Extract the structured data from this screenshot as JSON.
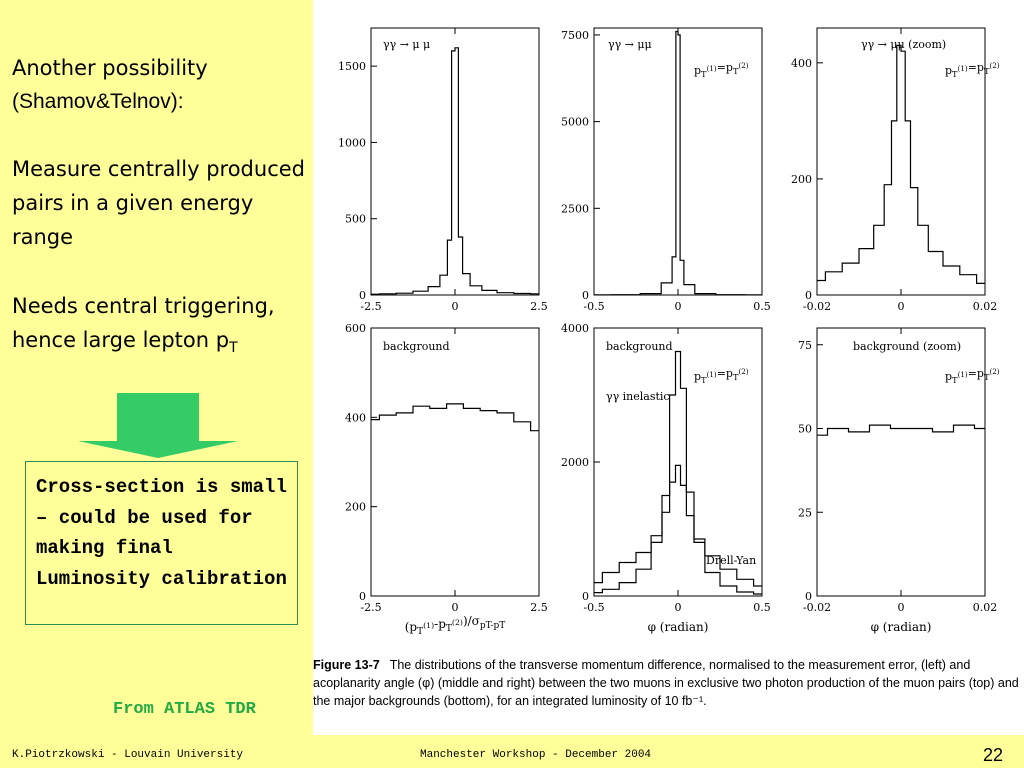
{
  "slide": {
    "heading_line1": "Another possibility",
    "heading_line2": "(Shamov&Telnov):",
    "para1": "Measure  centrally produced pairs in a given energy range",
    "para2_text": "Needs central triggering, hence large lepton p",
    "para2_sub": "T",
    "box_text": "Cross-section is small – could be used for making final Luminosity calibration",
    "source_note": "From ATLAS TDR",
    "footer_left": "K.Piotrzkowski - Louvain University",
    "footer_mid": "Manchester Workshop - December 2004",
    "page_number": "22",
    "caption_label": "Figure 13-7",
    "caption_text": "The distributions of the transverse momentum difference, normalised to the measurement error, (left) and acoplanarity angle (φ) (middle and right) between the two muons in exclusive two photon production of the muon pairs (top) and the major backgrounds (bottom), for an integrated luminosity of 10 fb⁻¹.",
    "colors": {
      "background": "#ffff99",
      "arrow": "#33cc66",
      "box_border": "#2e8b57",
      "source_note": "#22aa44"
    }
  },
  "chart_data": [
    {
      "type": "line",
      "style": "step-histogram",
      "annotations": [
        "γγ → μ μ"
      ],
      "xlim": [
        -2.5,
        2.5
      ],
      "ylim": [
        0,
        1750
      ],
      "xticks": [
        "-2.5",
        "0",
        "2.5"
      ],
      "yticks": [
        "0",
        "500",
        "1000",
        "1500"
      ],
      "x": [
        -2.5,
        -2.0,
        -1.5,
        -1.0,
        -0.6,
        -0.3,
        -0.15,
        -0.05,
        0.05,
        0.15,
        0.3,
        0.6,
        1.0,
        1.5,
        2.0,
        2.5
      ],
      "series": [
        {
          "values": [
            5,
            8,
            12,
            25,
            55,
            130,
            360,
            1600,
            1620,
            380,
            140,
            60,
            30,
            15,
            10,
            8
          ]
        }
      ]
    },
    {
      "type": "line",
      "style": "step-histogram",
      "annotations": [
        "γγ → μμ",
        "p_T^(1)=p_T^(2)"
      ],
      "xlim": [
        -0.5,
        0.5
      ],
      "ylim": [
        0,
        7700
      ],
      "xticks": [
        "-0.5",
        "0",
        "0.5"
      ],
      "yticks": [
        "0",
        "2500",
        "5000",
        "7500"
      ],
      "x": [
        -0.5,
        -0.3,
        -0.15,
        -0.05,
        -0.02,
        -0.005,
        0.005,
        0.02,
        0.05,
        0.15,
        0.3,
        0.5
      ],
      "series": [
        {
          "values": [
            5,
            10,
            40,
            350,
            1100,
            7600,
            7500,
            1000,
            300,
            40,
            10,
            5
          ]
        }
      ]
    },
    {
      "type": "line",
      "style": "step-histogram",
      "annotations": [
        "γγ → μμ (zoom)",
        "p_T^(1)=p_T^(2)"
      ],
      "xlim": [
        -0.02,
        0.02
      ],
      "ylim": [
        0,
        460
      ],
      "xticks": [
        "-0.02",
        "0",
        "0.02"
      ],
      "yticks": [
        "0",
        "200",
        "400"
      ],
      "x": [
        -0.02,
        -0.016,
        -0.012,
        -0.008,
        -0.005,
        -0.003,
        -0.0015,
        -0.0005,
        0.0005,
        0.0015,
        0.003,
        0.005,
        0.008,
        0.012,
        0.016,
        0.02
      ],
      "series": [
        {
          "values": [
            25,
            40,
            55,
            80,
            120,
            190,
            300,
            430,
            420,
            300,
            185,
            120,
            75,
            50,
            35,
            20
          ]
        }
      ]
    },
    {
      "type": "line",
      "style": "step-histogram",
      "annotations": [
        "background"
      ],
      "xlim": [
        -2.5,
        2.5
      ],
      "ylim": [
        0,
        600
      ],
      "xticks": [
        "-2.5",
        "0",
        "2.5"
      ],
      "yticks": [
        "0",
        "200",
        "400",
        "600"
      ],
      "xlabel": "(p_T^(1)-p_T^(2))/σ_pT-pT",
      "x": [
        -2.5,
        -2.0,
        -1.5,
        -1.0,
        -0.5,
        0,
        0.5,
        1.0,
        1.5,
        2.0,
        2.5
      ],
      "series": [
        {
          "values": [
            395,
            405,
            410,
            425,
            420,
            430,
            420,
            415,
            410,
            390,
            370
          ]
        }
      ]
    },
    {
      "type": "line",
      "style": "step-histogram",
      "annotations": [
        "background",
        "p_T^(1)=p_T^(2)",
        "γγ inelastic",
        "Drell-Yan"
      ],
      "xlim": [
        -0.5,
        0.5
      ],
      "ylim": [
        0,
        4000
      ],
      "xticks": [
        "-0.5",
        "0",
        "0.5"
      ],
      "yticks": [
        "0",
        "2000",
        "4000"
      ],
      "xlabel": "φ (radian)",
      "x": [
        -0.5,
        -0.4,
        -0.3,
        -0.2,
        -0.12,
        -0.07,
        -0.03,
        0,
        0.03,
        0.07,
        0.12,
        0.2,
        0.3,
        0.4,
        0.5
      ],
      "series": [
        {
          "name": "γγ inelastic",
          "values": [
            50,
            100,
            200,
            400,
            800,
            1500,
            3000,
            3650,
            3100,
            1550,
            800,
            350,
            150,
            60,
            30
          ]
        },
        {
          "name": "Drell-Yan",
          "values": [
            200,
            350,
            500,
            650,
            900,
            1250,
            1700,
            1950,
            1650,
            1200,
            850,
            600,
            400,
            250,
            150
          ]
        }
      ]
    },
    {
      "type": "line",
      "style": "step-histogram",
      "annotations": [
        "background (zoom)",
        "p_T^(1)=p_T^(2)"
      ],
      "xlim": [
        -0.02,
        0.02
      ],
      "ylim": [
        0,
        80
      ],
      "xticks": [
        "-0.02",
        "0",
        "0.02"
      ],
      "yticks": [
        "0",
        "25",
        "50",
        "75"
      ],
      "xlabel": "φ (radian)",
      "x": [
        -0.02,
        -0.015,
        -0.01,
        -0.005,
        0,
        0.005,
        0.01,
        0.015,
        0.02
      ],
      "series": [
        {
          "values": [
            48,
            50,
            49,
            51,
            50,
            50,
            49,
            51,
            50
          ]
        }
      ]
    }
  ]
}
